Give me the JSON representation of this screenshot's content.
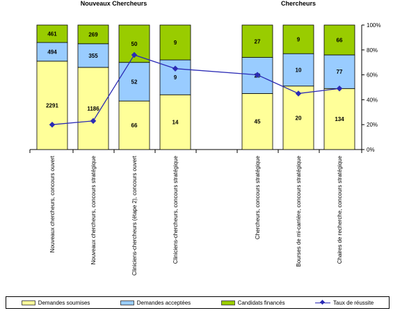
{
  "chart_data": {
    "type": "bar",
    "stacked": true,
    "group_titles": [
      {
        "label": "Nouveaux Chercheurs",
        "categories": [
          0,
          1,
          2,
          3
        ]
      },
      {
        "label": "Chercheurs",
        "categories": [
          4,
          5,
          6
        ]
      }
    ],
    "categories": [
      "Nouveaux chercheurs, concours ouvert",
      "Nouveaux chercheurs, concours stratégique",
      "Cliniciens-chercheurs (étape 2), concours ouvert",
      "Cliniciens-chercheurs, concours stratégique",
      "Chercheurs, concours stratégique",
      "Bourses de mi-carrière, concours stratégique",
      "Chaires de recherche, concours stratégique"
    ],
    "series": [
      {
        "name": "Demandes soumises",
        "color": "#ffff99",
        "share": [
          0.71,
          0.66,
          0.39,
          0.44,
          0.45,
          0.51,
          0.49
        ],
        "labels": [
          2291,
          1186,
          66,
          14,
          45,
          20,
          134
        ]
      },
      {
        "name": "Demandes acceptées",
        "color": "#99ccff",
        "share": [
          0.15,
          0.19,
          0.31,
          0.28,
          0.29,
          0.26,
          0.27
        ],
        "labels": [
          494,
          355,
          52,
          9,
          29,
          10,
          77
        ]
      },
      {
        "name": "Candidats financés",
        "color": "#99cc00",
        "share": [
          0.14,
          0.15,
          0.3,
          0.28,
          0.26,
          0.23,
          0.24
        ],
        "labels": [
          461,
          269,
          50,
          9,
          27,
          9,
          66
        ]
      }
    ],
    "line_series": {
      "name": "Taux de réussite",
      "color": "#2b2bb5",
      "values": [
        20,
        23,
        76,
        65,
        60,
        45,
        49
      ]
    },
    "y_axis": {
      "min": 0,
      "max": 100,
      "ticks": [
        "0%",
        "20%",
        "40%",
        "60%",
        "80%",
        "100%"
      ]
    },
    "legend_position": "bottom"
  }
}
